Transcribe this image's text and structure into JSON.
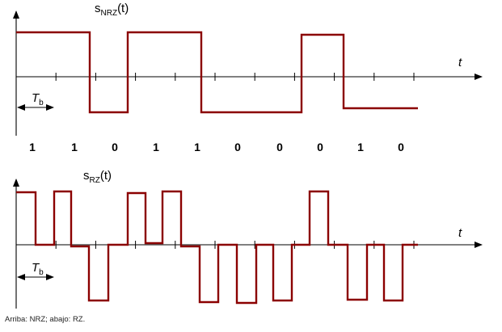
{
  "top": {
    "title_main": "s",
    "title_sub": "NRZ",
    "title_suffix": "(t)",
    "axis_label": "t",
    "period_main": "T",
    "period_sub": "b",
    "bits": [
      "1",
      "1",
      "0",
      "1",
      "1",
      "0",
      "0",
      "0",
      "1",
      "0"
    ]
  },
  "bottom": {
    "title_main": "s",
    "title_sub": "RZ",
    "title_suffix": "(t)",
    "axis_label": "t",
    "period_main": "T",
    "period_sub": "b"
  },
  "caption": "Arriba: NRZ; abajo: RZ.",
  "colors": {
    "signal": "#8b0000",
    "axis": "#000000"
  }
}
